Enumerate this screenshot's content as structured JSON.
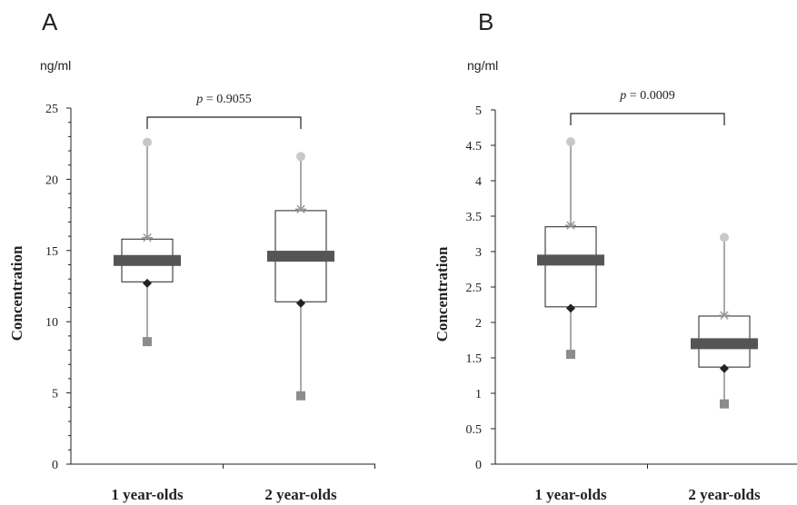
{
  "chart_data": [
    {
      "type": "box",
      "panel": "A",
      "unit": "ng/ml",
      "ylabel": "Concentration",
      "ylim": [
        0,
        25
      ],
      "yticks": [
        0,
        5,
        10,
        15,
        20,
        25
      ],
      "categories": [
        "1 year-olds",
        "2 year-olds"
      ],
      "boxes": [
        {
          "max": 22.6,
          "q3": 15.8,
          "median": 14.3,
          "q1": 12.8,
          "min": 8.6,
          "lower_marker": 12.7,
          "upper_marker": 15.9
        },
        {
          "max": 21.6,
          "q3": 17.8,
          "median": 14.6,
          "q1": 11.4,
          "min": 4.8,
          "lower_marker": 11.3,
          "upper_marker": 17.9
        }
      ],
      "significance": {
        "p_label": "p",
        "p_value": "= 0.9055"
      }
    },
    {
      "type": "box",
      "panel": "B",
      "unit": "ng/ml",
      "ylabel": "Concentration",
      "ylim": [
        0,
        5
      ],
      "yticks": [
        0,
        0.5,
        1,
        1.5,
        2,
        2.5,
        3,
        3.5,
        4,
        4.5,
        5
      ],
      "categories": [
        "1 year-olds",
        "2 year-olds"
      ],
      "boxes": [
        {
          "max": 4.55,
          "q3": 3.35,
          "median": 2.88,
          "q1": 2.22,
          "min": 1.55,
          "lower_marker": 2.2,
          "upper_marker": 3.37
        },
        {
          "max": 3.2,
          "q3": 2.09,
          "median": 1.7,
          "q1": 1.37,
          "min": 0.85,
          "lower_marker": 1.35,
          "upper_marker": 2.1
        }
      ],
      "significance": {
        "p_label": "p",
        "p_value": "= 0.0009"
      }
    }
  ],
  "colors": {
    "whisker": "#555555",
    "median_bar": "#555555",
    "max_marker": "#c8c8c8",
    "min_marker": "#8c8c8c",
    "lower_marker": "#222222",
    "upper_marker": "#999999",
    "axis": "#222222"
  }
}
